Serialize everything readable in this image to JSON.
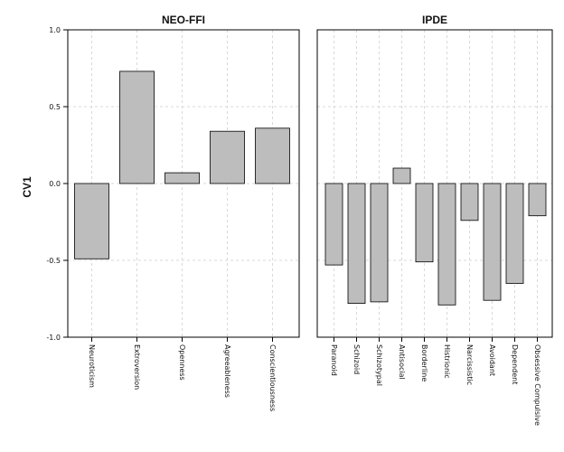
{
  "chart_data": {
    "type": "bar",
    "ylabel": "CV1",
    "ylim": [
      -1.0,
      1.0
    ],
    "yticks": [
      {
        "value": 1.0,
        "label": "1.0"
      },
      {
        "value": 0.5,
        "label": "0.5"
      },
      {
        "value": 0.0,
        "label": "0.0"
      },
      {
        "value": -0.5,
        "label": "-0.5"
      },
      {
        "value": -1.0,
        "label": "-1.0"
      }
    ],
    "grid": true,
    "panels": [
      {
        "title": "NEO-FFI",
        "categories": [
          "Neuroticism",
          "Extroversion",
          "Openness",
          "Agreeableness",
          "Conscientiousness"
        ],
        "values": [
          -0.49,
          0.73,
          0.07,
          0.34,
          0.36
        ]
      },
      {
        "title": "IPDE",
        "categories": [
          "Paranoid",
          "Schizoid",
          "Schizotypal",
          "Antisocial",
          "Borderline",
          "Histrionic",
          "Narcissistic",
          "Avoidant",
          "Dependent",
          "Obsessive Compulsive"
        ],
        "values": [
          -0.53,
          -0.78,
          -0.77,
          0.1,
          -0.51,
          -0.79,
          -0.24,
          -0.76,
          -0.65,
          -0.21
        ]
      }
    ]
  }
}
